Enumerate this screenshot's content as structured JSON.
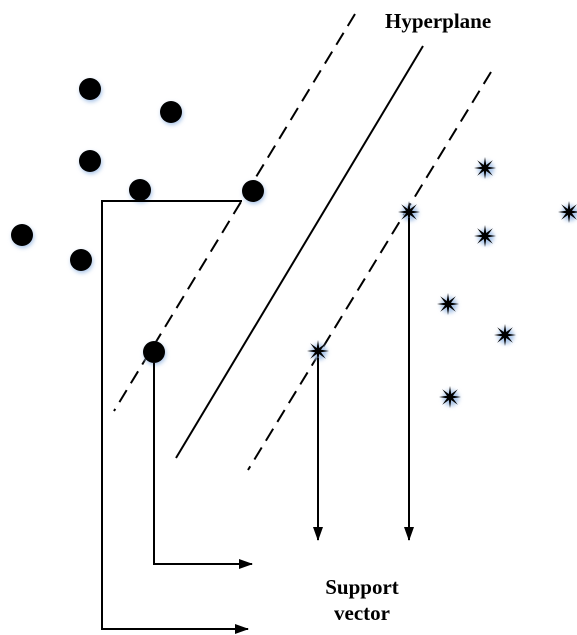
{
  "diagram": {
    "hyperplane_label": "Hyperplane",
    "support_vector_label_line1": "Support",
    "support_vector_label_line2": "vector",
    "colors": {
      "ink": "#000000",
      "halo": "#a9c4e8",
      "background": "#ffffff"
    },
    "legend_class_a_icon": "filled-circle-icon",
    "legend_class_b_icon": "star-icon"
  }
}
